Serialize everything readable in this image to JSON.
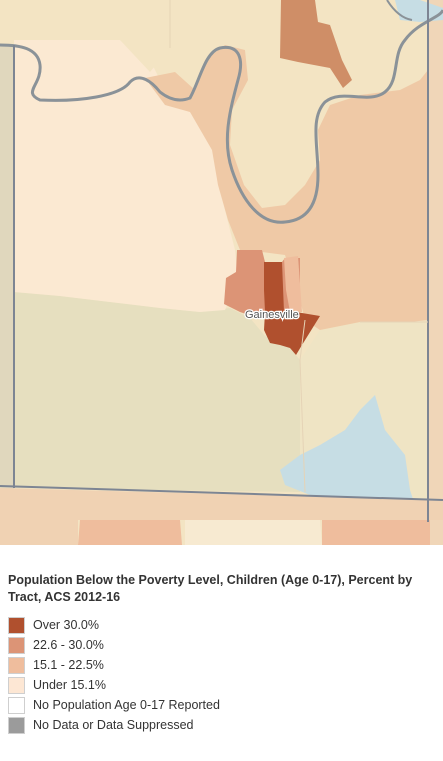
{
  "map": {
    "place_label": "Gainesville",
    "colors": {
      "base": "#f3e4c3",
      "terrain_green": "#e6dfbf",
      "tract_light": "#fbe9d2",
      "water": "#c6dde4",
      "river_line": "#8a9298",
      "county_line": "#7d8593"
    }
  },
  "legend": {
    "title": "Population Below the Poverty Level, Children (Age 0-17), Percent by Tract, ACS 2012-16",
    "items": [
      {
        "label": "Over 30.0%",
        "color": "#b0502e"
      },
      {
        "label": "22.6 - 30.0%",
        "color": "#dc9476"
      },
      {
        "label": "15.1 - 22.5%",
        "color": "#efbd9d"
      },
      {
        "label": "Under 15.1%",
        "color": "#fde7d4"
      },
      {
        "label": "No Population Age 0-17 Reported",
        "color": "#ffffff"
      },
      {
        "label": "No Data or Data Suppressed",
        "color": "#9b9b9b"
      }
    ]
  }
}
